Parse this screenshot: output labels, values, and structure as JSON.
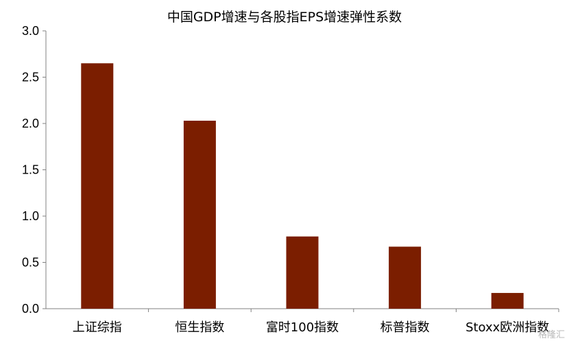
{
  "chart_data": {
    "type": "bar",
    "title": "中国GDP增速与各股指EPS增速弹性系数",
    "categories": [
      "上证综指",
      "恒生指数",
      "富时100指数",
      "标普指数",
      "Stoxx欧洲指数"
    ],
    "values": [
      2.65,
      2.03,
      0.78,
      0.67,
      0.17
    ],
    "ylim": [
      0,
      3.0
    ],
    "yticks": [
      "0.0",
      "0.5",
      "1.0",
      "1.5",
      "2.0",
      "2.5",
      "3.0"
    ],
    "xlabel": "",
    "ylabel": "",
    "grid": false,
    "bar_color": "#7B1E00"
  },
  "watermark": "格隆汇"
}
